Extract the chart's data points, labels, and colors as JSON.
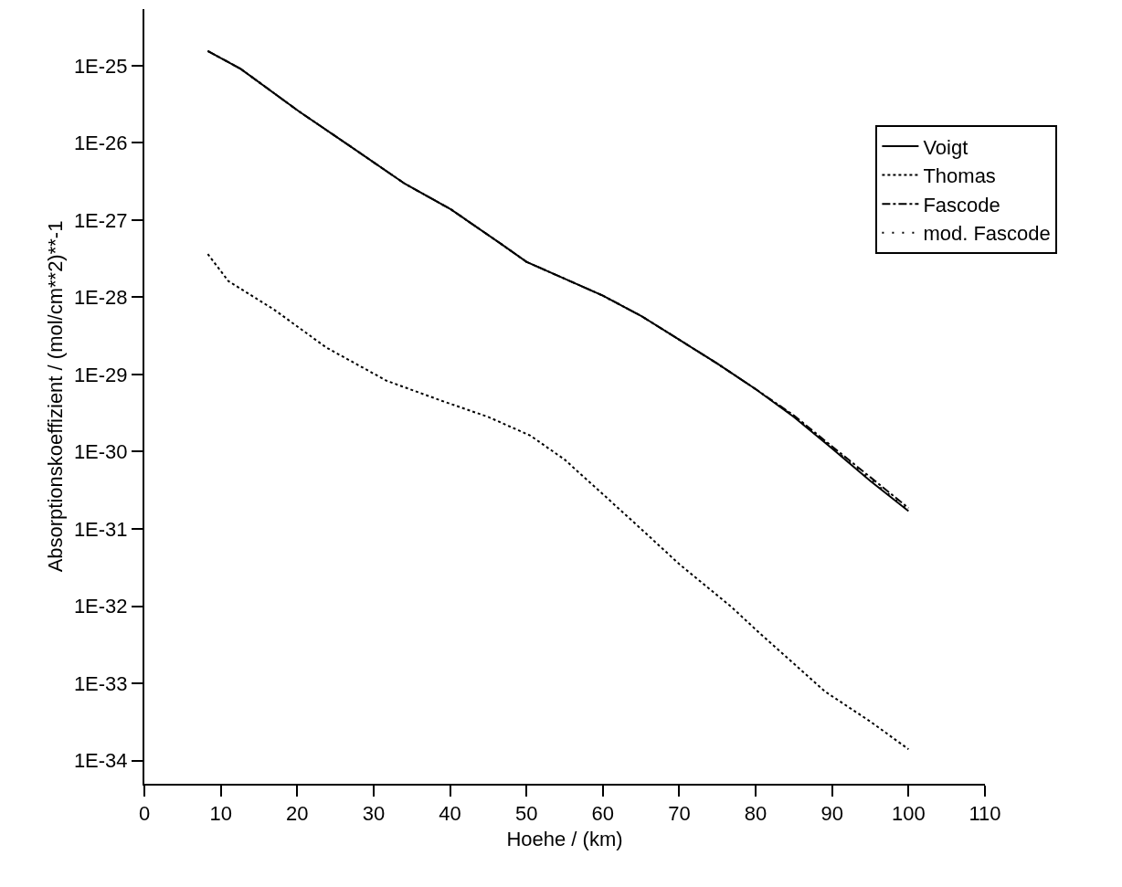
{
  "chart_data": {
    "type": "line",
    "xlabel": "Hoehe / (km)",
    "ylabel": "Absorptionskoeffizient / (mol/cm**2)**-1",
    "log": "y",
    "grid": false,
    "legend": "top right",
    "marker": "none",
    "xlim": [
      0,
      110
    ],
    "xticks": [
      0,
      10,
      20,
      30,
      40,
      50,
      60,
      70,
      80,
      90,
      100,
      110
    ],
    "ylim": [
      5e-35,
      5.4e-25
    ],
    "yticks": [
      {
        "value": 1e-25,
        "label": "1E-25"
      },
      {
        "value": 1e-26,
        "label": "1E-26"
      },
      {
        "value": 1e-27,
        "label": "1E-27"
      },
      {
        "value": 1e-28,
        "label": "1E-28"
      },
      {
        "value": 1e-29,
        "label": "1E-29"
      },
      {
        "value": 1e-30,
        "label": "1E-30"
      },
      {
        "value": 1e-31,
        "label": "1E-31"
      },
      {
        "value": 1e-32,
        "label": "1E-32"
      },
      {
        "value": 1e-33,
        "label": "1E-33"
      },
      {
        "value": 1e-34,
        "label": "1E-34"
      }
    ],
    "series": [
      {
        "name": "Voigt",
        "color": "#000000",
        "line_style": "solid",
        "x": [
          8.3,
          12.6,
          20.2,
          26.9,
          34.1,
          40.1,
          46.7,
          50,
          55,
          60,
          65,
          70,
          75,
          80,
          85,
          90,
          95,
          100
        ],
        "values": [
          1.55e-25,
          9.1e-26,
          2.57e-26,
          9.1e-27,
          2.95e-27,
          1.38e-27,
          4.9e-28,
          2.88e-28,
          1.74e-28,
          1.05e-28,
          5.75e-29,
          2.82e-29,
          1.38e-29,
          6.46e-30,
          2.82e-30,
          1.1e-30,
          4.17e-31,
          1.7e-31
        ]
      },
      {
        "name": "Thomas",
        "color": "#000000",
        "line_style": "dotted",
        "x": [
          8.3,
          11,
          17,
          23.8,
          31.7,
          38.9,
          45,
          50.5,
          55,
          60,
          65,
          70,
          76.8,
          80.7,
          85,
          89.1,
          95,
          100
        ],
        "values": [
          3.63e-28,
          1.62e-28,
          6.9e-29,
          2.24e-29,
          8.3e-30,
          4.57e-30,
          2.82e-30,
          1.62e-30,
          7.9e-31,
          2.82e-31,
          1e-31,
          3.5e-32,
          9.8e-33,
          4.3e-33,
          1.8e-33,
          7.8e-34,
          3.2e-34,
          1.4e-34
        ]
      },
      {
        "name": "Fascode",
        "color": "#000000",
        "line_style": "dashdot",
        "x": [
          8.3,
          12.6,
          20.2,
          26.9,
          34.1,
          40.1,
          46.7,
          50,
          55,
          60,
          65,
          70,
          75,
          80,
          85,
          90,
          95,
          100
        ],
        "values": [
          1.55e-25,
          9.1e-26,
          2.57e-26,
          9.1e-27,
          2.95e-27,
          1.38e-27,
          4.9e-28,
          2.88e-28,
          1.74e-28,
          1.05e-28,
          5.75e-29,
          2.82e-29,
          1.38e-29,
          6.46e-30,
          2.95e-30,
          1.17e-30,
          4.68e-31,
          1.86e-31
        ]
      },
      {
        "name": "mod. Fascode",
        "color": "#000000",
        "line_style": "sparse dotted",
        "x": [
          8.3,
          12.6,
          20.2,
          26.9,
          34.1,
          40.1,
          46.7,
          50,
          55,
          60,
          65,
          70,
          75,
          80,
          85,
          90,
          95,
          100
        ],
        "values": [
          1.55e-25,
          9.1e-26,
          2.57e-26,
          9.1e-27,
          2.95e-27,
          1.38e-27,
          4.9e-28,
          2.88e-28,
          1.74e-28,
          1.05e-28,
          5.75e-29,
          2.82e-29,
          1.38e-29,
          6.46e-30,
          2.88e-30,
          1.13e-30,
          4.4e-31,
          1.74e-31
        ]
      }
    ]
  }
}
